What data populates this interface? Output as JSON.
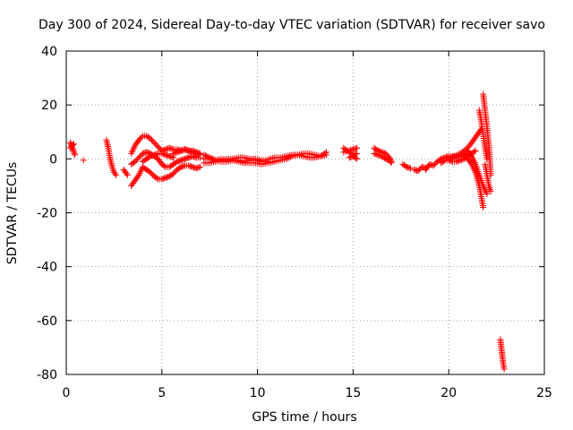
{
  "chart_data": {
    "type": "scatter",
    "title": "Day 300 of 2024, Sidereal Day-to-day VTEC variation (SDTVAR) for receiver savo",
    "xlabel": "GPS time / hours",
    "ylabel": "SDTVAR / TECUs",
    "xlim": [
      0,
      25
    ],
    "ylim": [
      -80,
      40
    ],
    "xticks": [
      0,
      5,
      10,
      15,
      20,
      25
    ],
    "yticks": [
      -80,
      -60,
      -40,
      -20,
      0,
      20,
      40
    ],
    "xtick_labels": [
      "0",
      "5",
      "10",
      "15",
      "20",
      "25"
    ],
    "ytick_labels": [
      "-80",
      "-60",
      "-40",
      "-20",
      "0",
      "20",
      "40"
    ],
    "grid": true,
    "marker": "+",
    "color": "#ff0000",
    "segments": [
      {
        "x": [
          0.2,
          0.25,
          0.3,
          0.35,
          0.4,
          0.45
        ],
        "y": [
          6,
          5.5,
          4.5,
          3.5,
          2.5,
          1.5
        ]
      },
      {
        "x": [
          0.2,
          0.3,
          0.4
        ],
        "y": [
          4,
          5,
          5.5
        ]
      },
      {
        "x": [
          0.9
        ],
        "y": [
          -0.5
        ]
      },
      {
        "x": [
          2.1,
          2.2,
          2.3,
          2.4,
          2.5,
          2.6
        ],
        "y": [
          7,
          4,
          0,
          -3,
          -5,
          -6
        ]
      },
      {
        "x": [
          3.0,
          3.1,
          3.2
        ],
        "y": [
          -4,
          -5,
          -6
        ]
      },
      {
        "x": [
          3.4,
          3.6,
          3.8,
          4.0,
          4.2,
          4.4,
          4.6,
          4.8,
          5.0,
          5.2,
          5.4,
          5.6,
          5.8,
          6.0,
          6.2,
          6.4,
          6.6,
          6.8,
          7.0
        ],
        "y": [
          2,
          5,
          7,
          8.5,
          8.5,
          7.5,
          6,
          4.5,
          3,
          3.5,
          4,
          3.5,
          3.5,
          3,
          3.5,
          3,
          3,
          2.5,
          2
        ]
      },
      {
        "x": [
          3.4,
          3.6,
          3.8,
          4.0,
          4.2,
          4.4,
          4.6,
          4.8,
          5.0,
          5.2,
          5.4,
          5.6,
          5.8,
          6.0,
          6.2,
          6.4,
          6.6,
          6.8,
          7.0
        ],
        "y": [
          -2,
          -1,
          0.5,
          2,
          2.5,
          2,
          1,
          0,
          -2,
          -3,
          -3,
          -2,
          -1,
          -0.5,
          0,
          0.5,
          1,
          0.5,
          0.5
        ]
      },
      {
        "x": [
          3.4,
          3.6,
          3.8,
          4.0,
          4.2,
          4.4,
          4.6,
          4.8,
          5.0,
          5.2,
          5.4,
          5.6,
          5.8,
          6.0,
          6.2,
          6.4,
          6.6,
          6.8,
          7.0
        ],
        "y": [
          -10,
          -8,
          -6,
          -3,
          -4,
          -5,
          -6.5,
          -7.5,
          -7.5,
          -7,
          -6.5,
          -5.5,
          -4,
          -3,
          -2.5,
          -2.5,
          -3,
          -3.5,
          -3
        ]
      },
      {
        "x": [
          4.0,
          4.2,
          4.4,
          4.6,
          4.8,
          5.0,
          5.2,
          5.4,
          5.6
        ],
        "y": [
          -1,
          0,
          1,
          1.5,
          2,
          2,
          1.5,
          1,
          0.5
        ]
      },
      {
        "x": [
          5.6,
          5.8,
          6.0,
          6.2,
          6.4,
          6.6,
          6.8,
          7.0
        ],
        "y": [
          2,
          2.5,
          3,
          3.5,
          3,
          2.5,
          2,
          1.5
        ]
      },
      {
        "x": [
          7.2,
          7.5,
          7.8,
          8.1,
          8.4,
          8.7,
          9.0,
          9.3,
          9.6,
          9.9,
          10.2,
          10.5
        ],
        "y": [
          1.5,
          0.5,
          -0.5,
          -1,
          -1,
          -0.5,
          -0.5,
          -1,
          -0.5,
          -0.5,
          -1,
          -1
        ]
      },
      {
        "x": [
          7.2,
          7.5,
          7.8,
          8.1,
          8.4,
          8.7,
          9.0,
          9.3,
          9.6,
          9.9,
          10.2,
          10.5
        ],
        "y": [
          0,
          0,
          -0.5,
          0,
          -0.5,
          -0.5,
          -1,
          -1.5,
          -1.5,
          -1.5,
          -2,
          -1.5
        ]
      },
      {
        "x": [
          7.2,
          7.5,
          7.8,
          8.1,
          8.4,
          8.7,
          9.0,
          9.3,
          9.6,
          9.9,
          10.2,
          10.5
        ],
        "y": [
          -1.5,
          -1.5,
          -1,
          -0.5,
          0,
          0,
          0.5,
          0.5,
          0,
          0,
          -0.5,
          -0.5
        ]
      },
      {
        "x": [
          10.6,
          10.9,
          11.2,
          11.5,
          11.8,
          12.1,
          12.4,
          12.7,
          13.0,
          13.3,
          13.6
        ],
        "y": [
          -1.5,
          -1,
          -0.5,
          0,
          1,
          1.5,
          2,
          2,
          1.5,
          1,
          1.5
        ]
      },
      {
        "x": [
          10.6,
          10.9,
          11.2,
          11.5,
          11.8,
          12.1,
          12.4,
          12.7,
          13.0,
          13.3,
          13.6
        ],
        "y": [
          0,
          0.5,
          0.5,
          1,
          1.5,
          1.5,
          1,
          0.5,
          0.5,
          1,
          2.5
        ]
      },
      {
        "x": [
          14.5,
          14.8,
          15.0,
          15.2
        ],
        "y": [
          2.5,
          3,
          3.5,
          4
        ]
      },
      {
        "x": [
          14.5,
          14.8,
          15.0,
          15.2
        ],
        "y": [
          4,
          2.5,
          1.5,
          2
        ]
      },
      {
        "x": [
          14.8,
          15.0,
          15.2
        ],
        "y": [
          0.5,
          1,
          0
        ]
      },
      {
        "x": [
          16.1,
          16.3,
          16.5,
          16.7,
          16.9,
          17.0
        ],
        "y": [
          4,
          3,
          2.5,
          2,
          0.5,
          -1
        ]
      },
      {
        "x": [
          16.1,
          16.3,
          16.5,
          16.7,
          16.9,
          17.0
        ],
        "y": [
          2,
          1.5,
          1,
          0,
          -0.5,
          -1.5
        ]
      },
      {
        "x": [
          17.6,
          17.8,
          18.0
        ],
        "y": [
          -2,
          -3,
          -3.5
        ]
      },
      {
        "x": [
          18.2,
          18.4,
          18.6,
          18.8
        ],
        "y": [
          -4,
          -4.5,
          -3,
          -3.5
        ]
      },
      {
        "x": [
          18.8,
          19.0,
          19.2,
          19.4,
          19.6,
          19.8,
          20.0,
          20.2,
          20.4,
          20.6,
          20.8,
          21.0
        ],
        "y": [
          -4,
          -2,
          -2.5,
          -1,
          0,
          0.5,
          1,
          1,
          0.5,
          1,
          1.5,
          2
        ]
      },
      {
        "x": [
          19.6,
          19.8,
          20.0,
          20.2,
          20.4,
          20.6,
          20.8,
          21.0,
          21.2,
          21.4
        ],
        "y": [
          -1.5,
          -0.5,
          -0.5,
          -1,
          -1,
          -0.5,
          0,
          1,
          2,
          3
        ]
      },
      {
        "x": [
          20.0,
          20.3,
          20.6,
          20.9,
          21.1,
          21.3,
          21.5,
          21.7
        ],
        "y": [
          0,
          1,
          2,
          3.5,
          5,
          7,
          9,
          11
        ]
      },
      {
        "x": [
          20.8,
          21.0,
          21.2,
          21.4,
          21.6,
          21.8
        ],
        "y": [
          2,
          0,
          -2,
          -5,
          -10,
          -18
        ]
      },
      {
        "x": [
          21.0,
          21.2,
          21.4,
          21.6,
          21.8,
          22.0
        ],
        "y": [
          3,
          1,
          -2,
          -6,
          -10,
          -13
        ]
      },
      {
        "x": [
          21.6,
          21.7,
          21.8,
          21.9,
          22.0
        ],
        "y": [
          18,
          14,
          9,
          4,
          0
        ]
      },
      {
        "x": [
          21.8,
          21.9,
          22.0,
          22.1,
          22.2
        ],
        "y": [
          24,
          18,
          12,
          5,
          -6
        ]
      },
      {
        "x": [
          21.9,
          22.0,
          22.1,
          22.2
        ],
        "y": [
          -2,
          -6,
          -10,
          -12
        ]
      },
      {
        "x": [
          22.7,
          22.75,
          22.8,
          22.85,
          22.9
        ],
        "y": [
          -67,
          -70,
          -73,
          -76,
          -78
        ]
      }
    ]
  }
}
